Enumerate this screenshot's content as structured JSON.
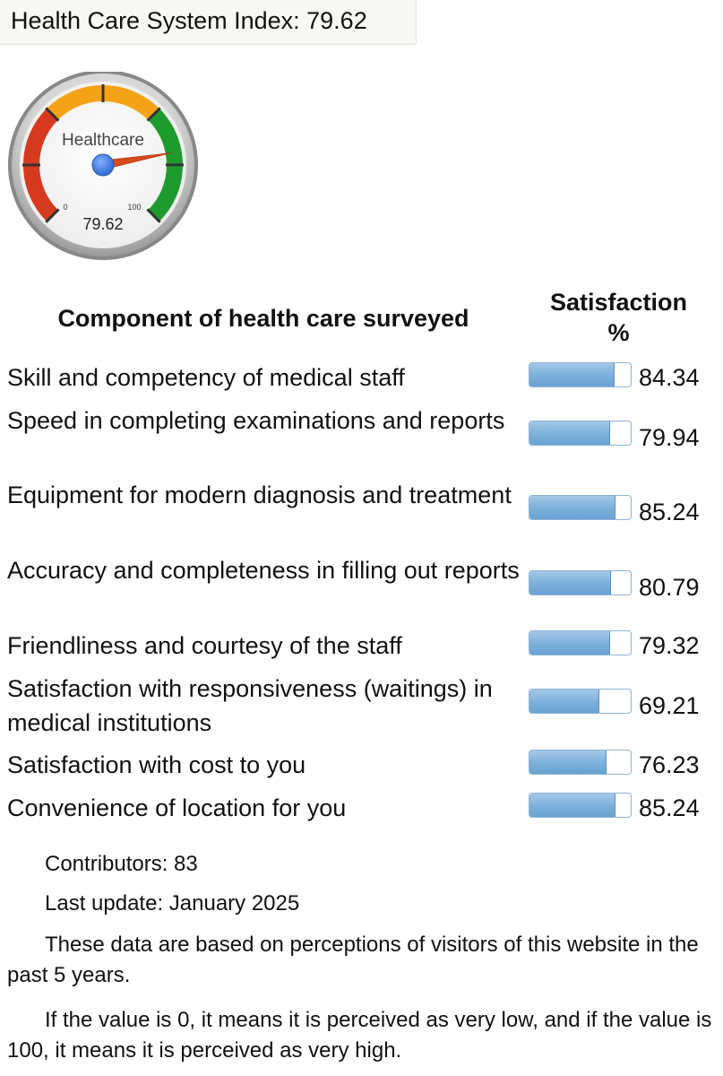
{
  "header": {
    "title": "Health Care System Index: 79.62"
  },
  "gauge": {
    "label": "Healthcare",
    "min_label": "0",
    "max_label": "100",
    "value": 79.62,
    "value_text": "79.62",
    "min": 0,
    "max": 100,
    "colors": {
      "red": "#d63a1e",
      "orange": "#f5a316",
      "green": "#1e9b2e",
      "needle": "#d84a1c",
      "hub": "#4b8be3",
      "rim": "#8a8a8a"
    }
  },
  "table": {
    "component_header": "Component of health care surveyed",
    "satisfaction_header_line1": "Satisfaction",
    "satisfaction_header_line2": "%",
    "bar_color": "#7eb2dd",
    "rows": [
      {
        "label": "Skill and competency of medical staff",
        "value": "84.34",
        "pct": 84.34
      },
      {
        "label": "Speed in completing examinations and reports",
        "value": "79.94",
        "pct": 79.94
      },
      {
        "label": "Equipment for modern diagnosis and treatment",
        "value": "85.24",
        "pct": 85.24
      },
      {
        "label": "Accuracy and completeness in filling out reports",
        "value": "80.79",
        "pct": 80.79
      },
      {
        "label": "Friendliness and courtesy of the staff",
        "value": "79.32",
        "pct": 79.32
      },
      {
        "label": "Satisfaction with responsiveness (waitings) in medical institutions",
        "value": "69.21",
        "pct": 69.21
      },
      {
        "label": "Satisfaction with cost to you",
        "value": "76.23",
        "pct": 76.23
      },
      {
        "label": "Convenience of location for you",
        "value": "85.24",
        "pct": 85.24
      }
    ]
  },
  "footer": {
    "contributors": "Contributors: 83",
    "last_update": "Last update: January 2025",
    "note1": "These data are based on perceptions of visitors of this website in the past 5 years.",
    "note2": "If the value is 0, it means it is perceived as very low, and if the value is 100, it means it is perceived as very high."
  }
}
